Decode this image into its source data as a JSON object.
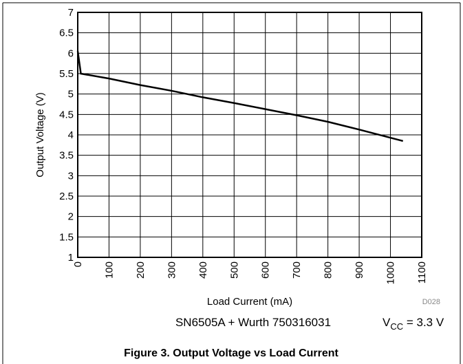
{
  "chart_data": {
    "type": "line",
    "title": "Figure 3. Output Voltage vs Load Current",
    "x_label": "Load Current (mA)",
    "y_label": "Output Voltage (V)",
    "figure_id": "D028",
    "annotation": "SN6505A + Wurth 750316031",
    "vcc_label": {
      "main": "V",
      "sub": "CC",
      "rest": " = 3.3 V"
    },
    "x": [
      0,
      10,
      100,
      200,
      300,
      400,
      500,
      600,
      700,
      800,
      900,
      1000,
      1040
    ],
    "series": [
      {
        "name": "Output Voltage",
        "color": "#000000",
        "values": [
          6.05,
          5.5,
          5.38,
          5.22,
          5.08,
          4.92,
          4.78,
          4.63,
          4.48,
          4.32,
          4.13,
          3.93,
          3.85
        ]
      }
    ],
    "xlim": [
      0,
      1100
    ],
    "xticks": [
      0,
      100,
      200,
      300,
      400,
      500,
      600,
      700,
      800,
      900,
      1000,
      1100
    ],
    "ylim": [
      1,
      7
    ],
    "yticks": [
      1,
      1.5,
      2,
      2.5,
      3,
      3.5,
      4,
      4.5,
      5,
      5.5,
      6,
      6.5,
      7
    ],
    "grid": true
  }
}
